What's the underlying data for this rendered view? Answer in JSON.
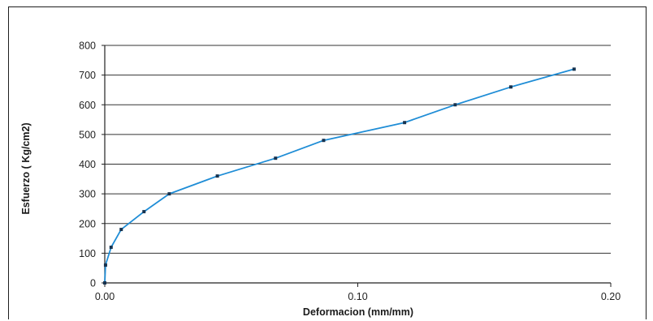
{
  "chart_data": {
    "type": "line",
    "title": "",
    "xlabel": "Deformacion (mm/mm)",
    "ylabel": "Esfuerzo ( Kg/cm2)",
    "xlim": [
      0,
      0.2
    ],
    "ylim": [
      0,
      800
    ],
    "x_ticks": [
      "0.00",
      "0.10",
      "0.20"
    ],
    "x_tick_values": [
      0,
      0.1,
      0.2
    ],
    "y_ticks": [
      "0",
      "100",
      "200",
      "300",
      "400",
      "500",
      "600",
      "700",
      "800"
    ],
    "y_tick_values": [
      0,
      100,
      200,
      300,
      400,
      500,
      600,
      700,
      800
    ],
    "grid": "horizontal",
    "legend": "none",
    "series": [
      {
        "x": [
          0.0,
          0.0003,
          0.0025,
          0.0065,
          0.0155,
          0.0255,
          0.0445,
          0.0675,
          0.0865,
          0.1185,
          0.1385,
          0.1605,
          0.1855
        ],
        "y": [
          0,
          60,
          120,
          180,
          240,
          300,
          360,
          420,
          480,
          540,
          600,
          660,
          720
        ]
      }
    ],
    "colors": {
      "line": "#1f8dd6",
      "marker": "#16324f",
      "grid": "#333333",
      "axis": "#222222"
    }
  }
}
